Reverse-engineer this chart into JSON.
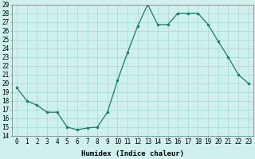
{
  "x": [
    0,
    1,
    2,
    3,
    4,
    5,
    6,
    7,
    8,
    9,
    10,
    11,
    12,
    13,
    14,
    15,
    16,
    17,
    18,
    19,
    20,
    21,
    22,
    23
  ],
  "y": [
    19.5,
    18.0,
    17.5,
    16.7,
    16.7,
    15.0,
    14.7,
    14.9,
    15.0,
    16.7,
    20.3,
    23.5,
    26.5,
    29.0,
    26.7,
    26.7,
    28.0,
    28.0,
    28.0,
    26.7,
    24.8,
    23.0,
    21.0,
    20.0
  ],
  "line_color": "#1a7a6a",
  "marker": "o",
  "marker_size": 2,
  "bg_color": "#cff0ec",
  "grid_color": "#a8ddd7",
  "xlabel": "Humidex (Indice chaleur)",
  "ylim": [
    14,
    29
  ],
  "xlim": [
    -0.5,
    23.5
  ],
  "yticks": [
    14,
    15,
    16,
    17,
    18,
    19,
    20,
    21,
    22,
    23,
    24,
    25,
    26,
    27,
    28,
    29
  ],
  "xticks": [
    0,
    1,
    2,
    3,
    4,
    5,
    6,
    7,
    8,
    9,
    10,
    11,
    12,
    13,
    14,
    15,
    16,
    17,
    18,
    19,
    20,
    21,
    22,
    23
  ],
  "xtick_labels": [
    "0",
    "1",
    "2",
    "3",
    "4",
    "5",
    "6",
    "7",
    "8",
    "9",
    "10",
    "11",
    "12",
    "13",
    "14",
    "15",
    "16",
    "17",
    "18",
    "19",
    "20",
    "21",
    "22",
    "23"
  ],
  "axis_fontsize": 6.5,
  "tick_fontsize": 5.5
}
